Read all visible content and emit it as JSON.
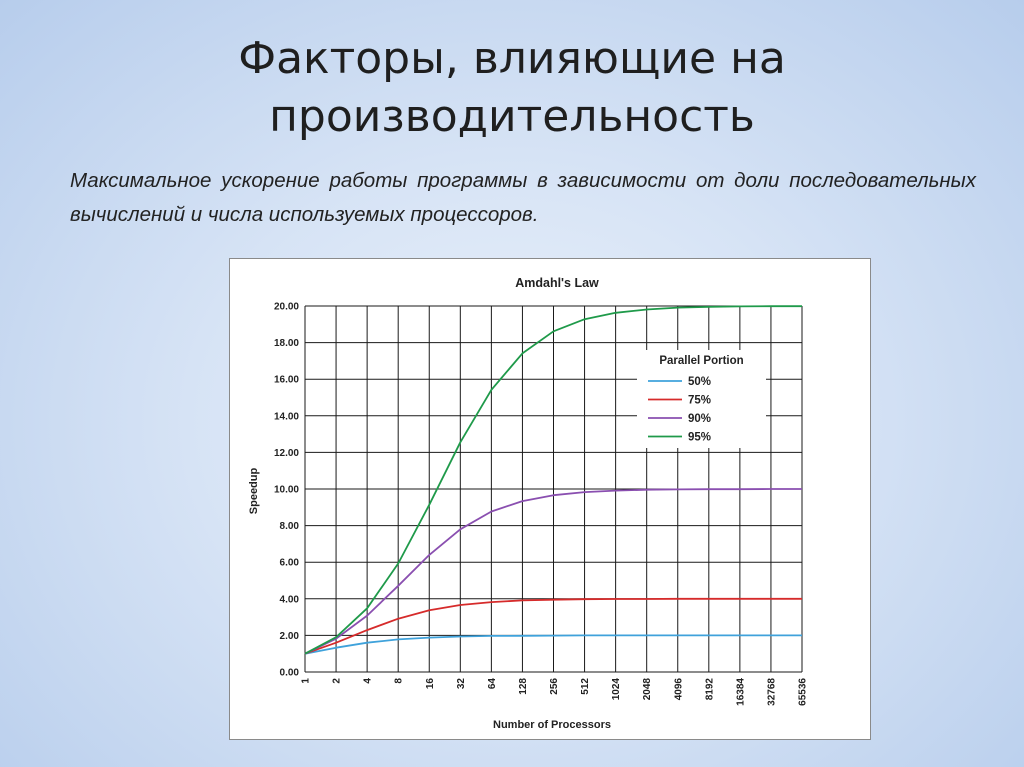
{
  "slide": {
    "title_line1": "Факторы, влияющие на",
    "title_line2": "производительность",
    "subtitle": "Максимальное ускорение работы программы в зависимости от доли последовательных вычислений и числа используемых процессоров."
  },
  "chart_data": {
    "type": "line",
    "title": "Amdahl's Law",
    "xlabel": "Number of Processors",
    "ylabel": "Speedup",
    "x": [
      "1",
      "2",
      "4",
      "8",
      "16",
      "32",
      "64",
      "128",
      "256",
      "512",
      "1024",
      "2048",
      "4096",
      "8192",
      "16384",
      "32768",
      "65536"
    ],
    "ylim": [
      0,
      20
    ],
    "yticks": [
      "0.00",
      "2.00",
      "4.00",
      "6.00",
      "8.00",
      "10.00",
      "12.00",
      "14.00",
      "16.00",
      "18.00",
      "20.00"
    ],
    "grid": true,
    "legend": {
      "title": "Parallel Portion",
      "placement": "right"
    },
    "series": [
      {
        "name": "50%",
        "color": "#3fa2db",
        "values": [
          1.0,
          1.33,
          1.6,
          1.78,
          1.88,
          1.94,
          1.97,
          1.98,
          1.99,
          2.0,
          2.0,
          2.0,
          2.0,
          2.0,
          2.0,
          2.0,
          2.0
        ]
      },
      {
        "name": "75%",
        "color": "#d62b2b",
        "values": [
          1.0,
          1.6,
          2.29,
          2.91,
          3.37,
          3.66,
          3.82,
          3.91,
          3.95,
          3.98,
          3.99,
          3.99,
          4.0,
          4.0,
          4.0,
          4.0,
          4.0
        ]
      },
      {
        "name": "90%",
        "color": "#8a4fb0",
        "values": [
          1.0,
          1.82,
          3.08,
          4.71,
          6.4,
          7.8,
          8.77,
          9.34,
          9.66,
          9.83,
          9.91,
          9.96,
          9.98,
          9.99,
          9.99,
          10.0,
          10.0
        ]
      },
      {
        "name": "95%",
        "color": "#1f9a4a",
        "values": [
          1.0,
          1.9,
          3.48,
          5.93,
          9.14,
          12.55,
          15.42,
          17.41,
          18.62,
          19.28,
          19.63,
          19.81,
          19.91,
          19.95,
          19.98,
          19.99,
          19.99
        ]
      }
    ]
  }
}
